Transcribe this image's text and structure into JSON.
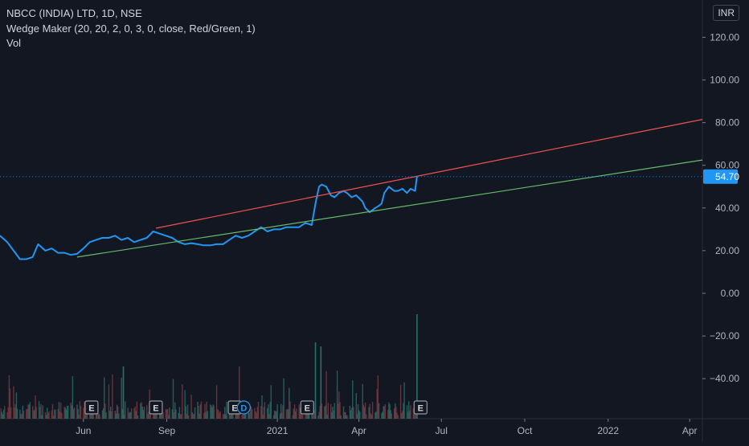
{
  "legend": {
    "symbol": "NBCC (INDIA) LTD, 1D, NSE",
    "indicator": "Wedge Maker (20, 20, 2, 0, 3, 0, close, Red/Green, 1)",
    "volume": "Vol"
  },
  "currency_label": "INR",
  "colors": {
    "background": "#131722",
    "price_line": "#2196f3",
    "upper_line": "#ef5350",
    "lower_line": "#66bb6a",
    "last_price_bg": "#2196f3",
    "axis_text": "#b2b5be",
    "volume": "#1f6e6a"
  },
  "chart_data": {
    "type": "line",
    "y_axis": {
      "ticks": [
        120,
        100,
        80,
        60,
        40,
        20,
        0,
        -20,
        -40
      ],
      "tick_labels": [
        "120.00",
        "100.00",
        "80.00",
        "60.00",
        "40.00",
        "20.00",
        "0.00",
        "−20.00",
        "−40.00"
      ]
    },
    "x_axis": {
      "tick_labels": [
        "Jun",
        "Sep",
        "2021",
        "Apr",
        "Jul",
        "Oct",
        "2022",
        "Apr"
      ],
      "tick_dates": [
        "2020-06-01",
        "2020-09-01",
        "2021-01-01",
        "2021-04-01",
        "2021-07-01",
        "2021-10-01",
        "2022-01-01",
        "2022-04-01"
      ],
      "range": [
        "2020-03-01",
        "2022-04-15"
      ]
    },
    "last_price": {
      "value": 54.7,
      "label": "54.70"
    },
    "series": [
      {
        "style": "price",
        "points": [
          [
            "2020-03-01",
            27
          ],
          [
            "2020-03-09",
            24
          ],
          [
            "2020-03-16",
            20
          ],
          [
            "2020-03-23",
            16
          ],
          [
            "2020-03-30",
            16
          ],
          [
            "2020-04-06",
            17
          ],
          [
            "2020-04-12",
            23
          ],
          [
            "2020-04-20",
            20
          ],
          [
            "2020-04-27",
            21
          ],
          [
            "2020-05-04",
            19
          ],
          [
            "2020-05-11",
            19
          ],
          [
            "2020-05-18",
            18
          ],
          [
            "2020-05-25",
            18.5
          ],
          [
            "2020-06-01",
            21
          ],
          [
            "2020-06-08",
            24
          ],
          [
            "2020-06-15",
            25
          ],
          [
            "2020-06-22",
            26
          ],
          [
            "2020-06-29",
            26
          ],
          [
            "2020-07-06",
            27
          ],
          [
            "2020-07-13",
            25
          ],
          [
            "2020-07-20",
            26
          ],
          [
            "2020-07-27",
            24
          ],
          [
            "2020-08-03",
            25
          ],
          [
            "2020-08-10",
            26
          ],
          [
            "2020-08-17",
            29
          ],
          [
            "2020-08-24",
            28
          ],
          [
            "2020-08-31",
            27
          ],
          [
            "2020-09-07",
            26
          ],
          [
            "2020-09-14",
            24
          ],
          [
            "2020-09-21",
            23
          ],
          [
            "2020-09-28",
            23.5
          ],
          [
            "2020-10-05",
            23
          ],
          [
            "2020-10-12",
            22.5
          ],
          [
            "2020-10-19",
            22.5
          ],
          [
            "2020-10-26",
            23
          ],
          [
            "2020-11-02",
            23
          ],
          [
            "2020-11-09",
            25
          ],
          [
            "2020-11-16",
            27
          ],
          [
            "2020-11-23",
            26
          ],
          [
            "2020-11-30",
            27
          ],
          [
            "2020-12-07",
            29
          ],
          [
            "2020-12-14",
            31
          ],
          [
            "2020-12-21",
            29
          ],
          [
            "2020-12-28",
            30
          ],
          [
            "2021-01-04",
            30
          ],
          [
            "2021-01-11",
            31
          ],
          [
            "2021-01-18",
            31
          ],
          [
            "2021-01-25",
            31
          ],
          [
            "2021-02-01",
            33
          ],
          [
            "2021-02-08",
            32
          ],
          [
            "2021-02-12",
            42
          ],
          [
            "2021-02-16",
            50
          ],
          [
            "2021-02-19",
            51
          ],
          [
            "2021-02-24",
            50
          ],
          [
            "2021-03-01",
            46
          ],
          [
            "2021-03-05",
            45
          ],
          [
            "2021-03-10",
            47
          ],
          [
            "2021-03-15",
            48
          ],
          [
            "2021-03-19",
            47
          ],
          [
            "2021-03-24",
            45
          ],
          [
            "2021-03-29",
            46
          ],
          [
            "2021-04-05",
            43
          ],
          [
            "2021-04-08",
            40
          ],
          [
            "2021-04-13",
            38
          ],
          [
            "2021-04-19",
            40
          ],
          [
            "2021-04-23",
            41
          ],
          [
            "2021-04-26",
            42
          ],
          [
            "2021-04-29",
            47
          ],
          [
            "2021-05-04",
            50
          ],
          [
            "2021-05-10",
            48
          ],
          [
            "2021-05-14",
            48
          ],
          [
            "2021-05-19",
            49
          ],
          [
            "2021-05-24",
            47
          ],
          [
            "2021-05-28",
            49
          ],
          [
            "2021-06-02",
            48
          ],
          [
            "2021-06-04",
            54.7
          ]
        ]
      },
      {
        "style": "upper",
        "points": [
          [
            "2020-08-20",
            30.5
          ],
          [
            "2022-04-15",
            81.5
          ]
        ]
      },
      {
        "style": "lower",
        "points": [
          [
            "2020-05-25",
            17.0
          ],
          [
            "2022-04-15",
            62.5
          ]
        ]
      }
    ],
    "volume_markers": [
      {
        "date": "2020-06-10",
        "label": "E"
      },
      {
        "date": "2020-08-20",
        "label": "E"
      },
      {
        "date": "2020-11-15",
        "label": "E"
      },
      {
        "date": "2020-11-25",
        "label": "D"
      },
      {
        "date": "2021-02-03",
        "label": "E"
      },
      {
        "date": "2021-06-08",
        "label": "E"
      }
    ]
  }
}
